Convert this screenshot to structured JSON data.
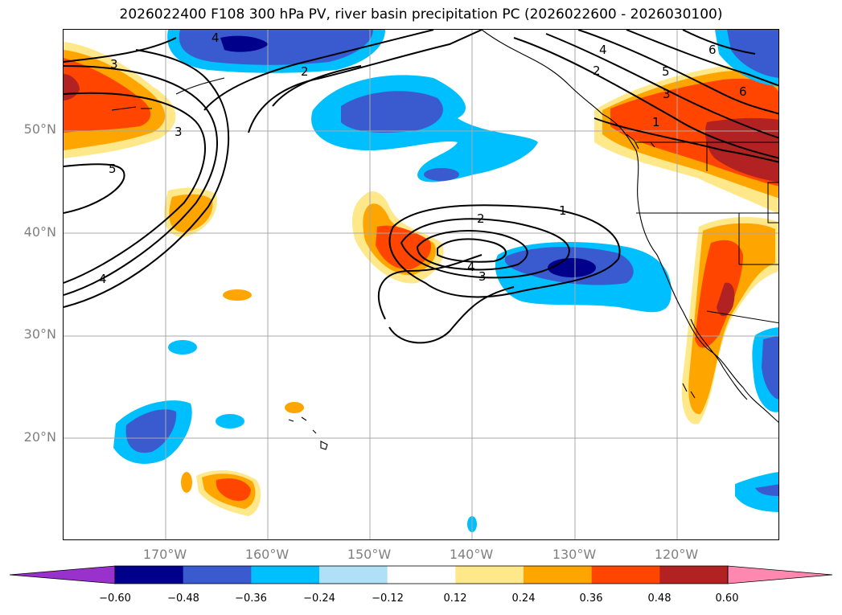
{
  "title": "2026022400 F108 300 hPa PV, river basin precipitation PC (2026022600 - 2026030100)",
  "map": {
    "lat_labels": [
      "50°N",
      "40°N",
      "30°N",
      "20°N"
    ],
    "lon_labels": [
      "170°W",
      "160°W",
      "150°W",
      "140°W",
      "130°W",
      "120°W"
    ],
    "pv_contour_labels": [
      "4",
      "3",
      "2",
      "3",
      "5",
      "4",
      "2",
      "1",
      "4",
      "3",
      "4",
      "2",
      "5",
      "3",
      "6",
      "6",
      "1"
    ]
  },
  "colorbar": {
    "ticks": [
      "−0.60",
      "−0.48",
      "−0.36",
      "−0.24",
      "−0.12",
      "0.12",
      "0.24",
      "0.36",
      "0.48",
      "0.60"
    ],
    "colors": [
      "#9932cc",
      "#00008b",
      "#3a5bd0",
      "#00bfff",
      "#b0e0f8",
      "#ffffff",
      "#ffe88a",
      "#ffa500",
      "#ff4500",
      "#b22222",
      "#ff88b0"
    ]
  }
}
